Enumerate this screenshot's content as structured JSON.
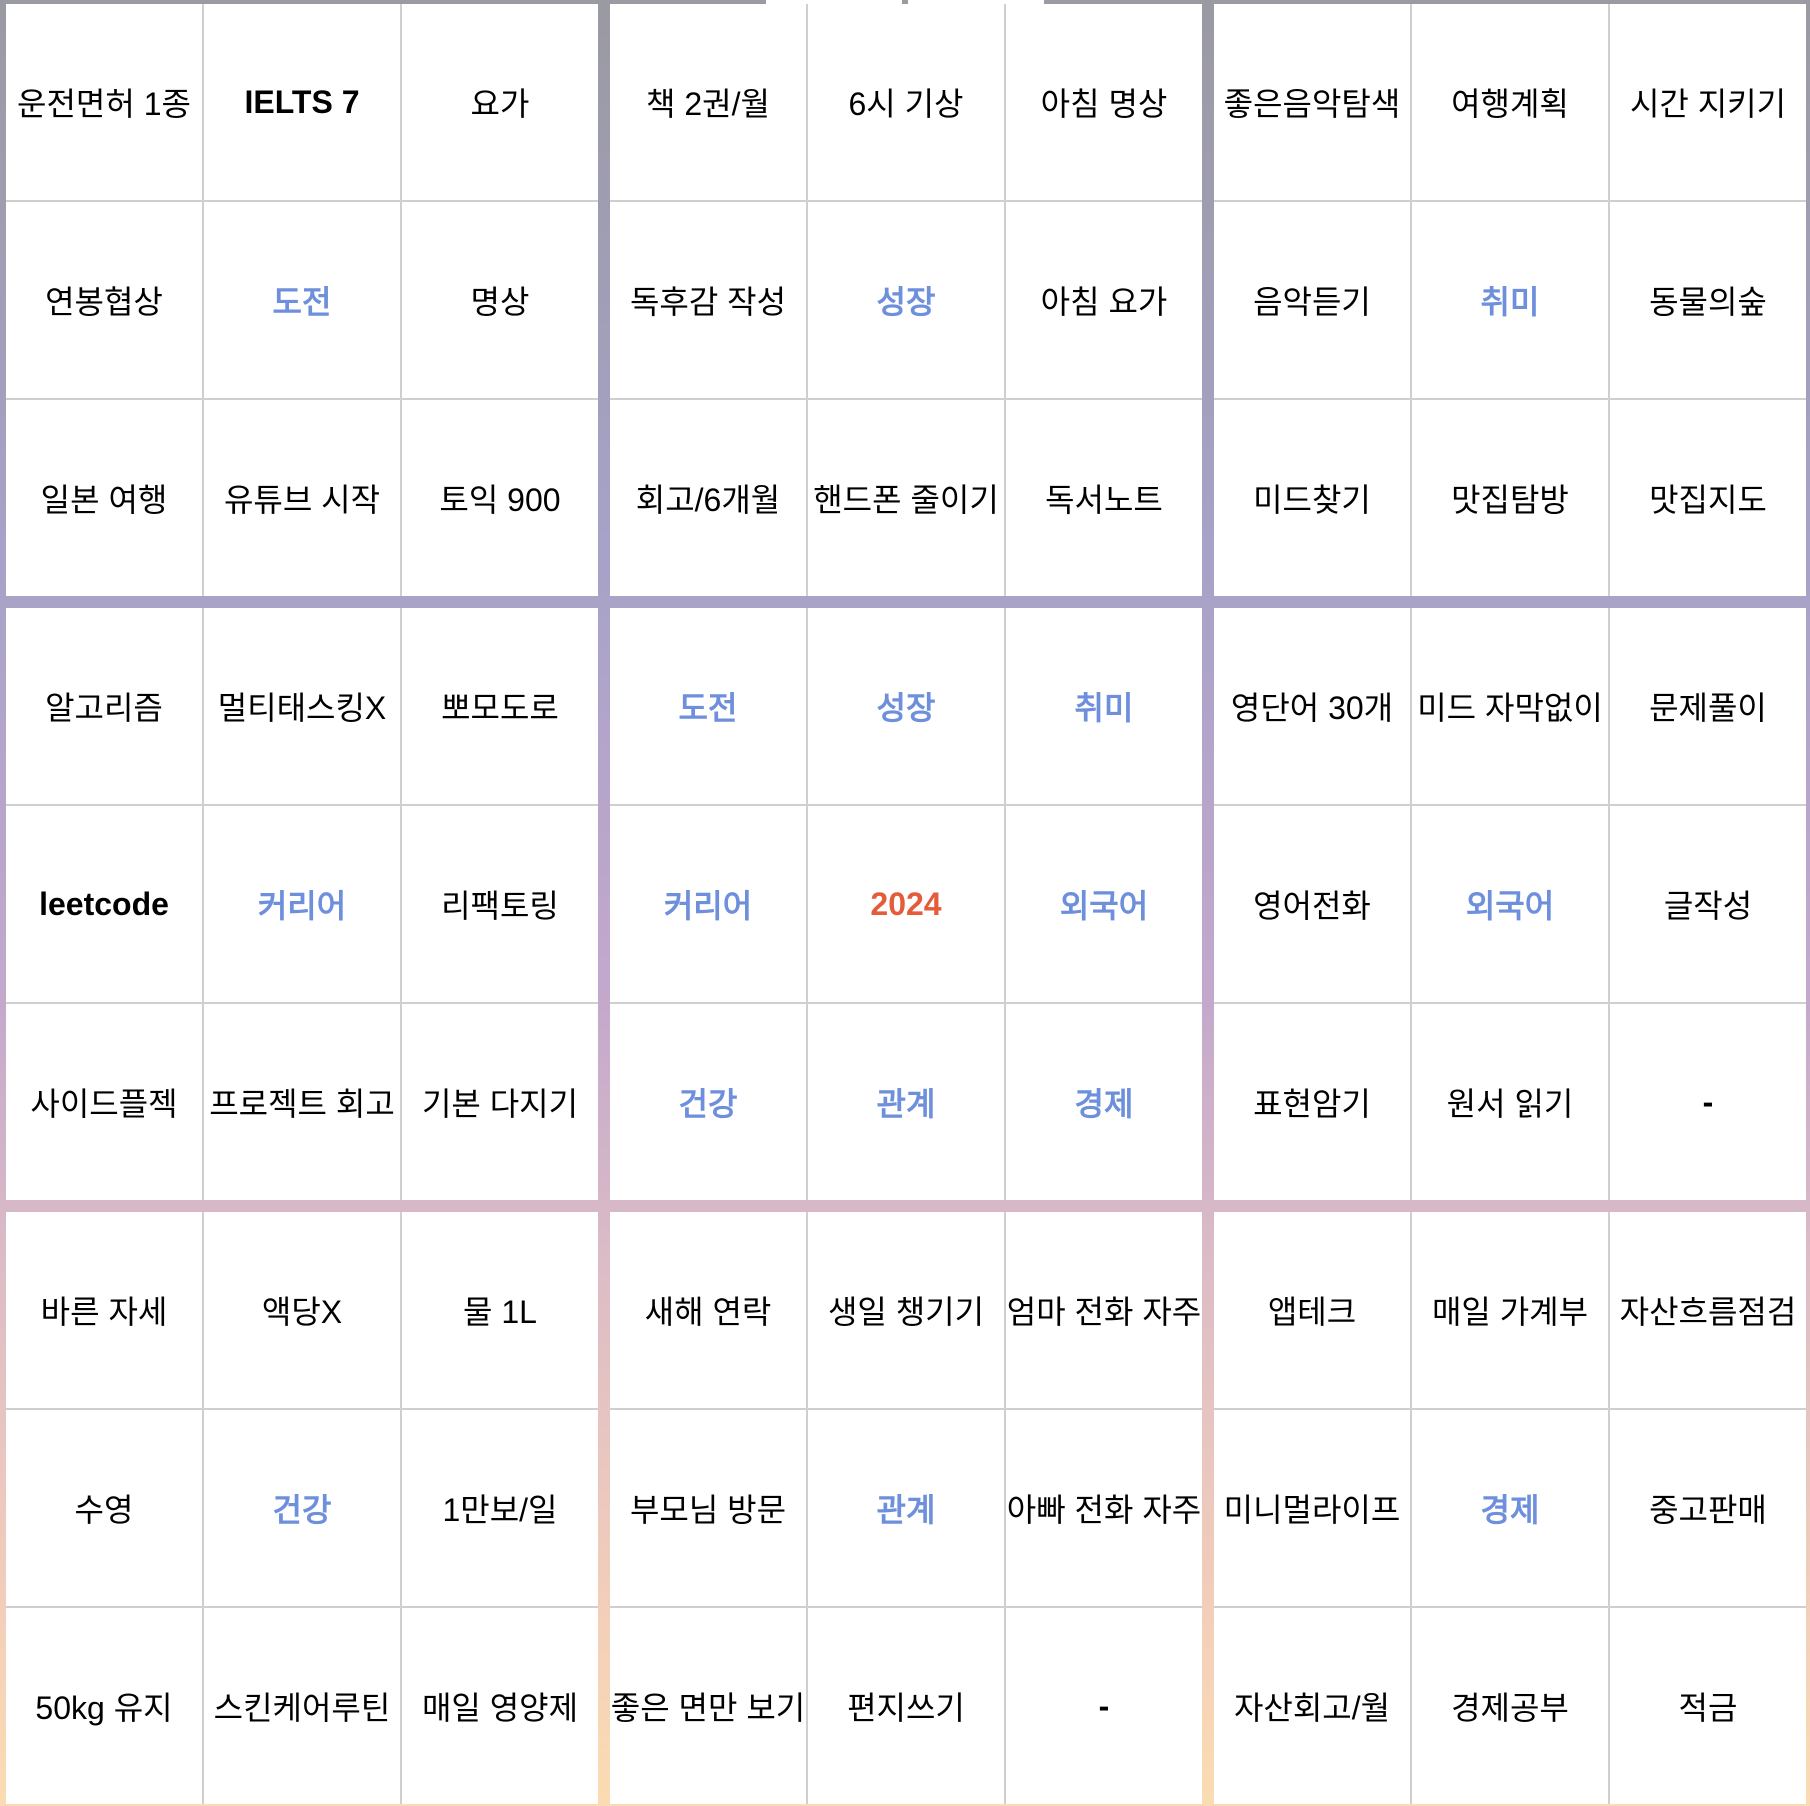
{
  "colors": {
    "category": "#6d8fdc",
    "year": "#e45c3a",
    "text": "#000000",
    "cell_background": "#ffffff"
  },
  "blocks": [
    {
      "cells": [
        {
          "text": "운전면허 1종",
          "style": "normal"
        },
        {
          "text": "IELTS 7",
          "style": "num"
        },
        {
          "text": "요가",
          "style": "normal"
        },
        {
          "text": "연봉협상",
          "style": "normal"
        },
        {
          "text": "도전",
          "style": "cat"
        },
        {
          "text": "명상",
          "style": "normal"
        },
        {
          "text": "일본 여행",
          "style": "normal"
        },
        {
          "text": "유튜브 시작",
          "style": "normal"
        },
        {
          "text": "토익 900",
          "style": "normal"
        }
      ]
    },
    {
      "cells": [
        {
          "text": "책 2권/월",
          "style": "normal"
        },
        {
          "text": "6시 기상",
          "style": "normal"
        },
        {
          "text": "아침 명상",
          "style": "normal"
        },
        {
          "text": "독후감 작성",
          "style": "normal"
        },
        {
          "text": "성장",
          "style": "cat"
        },
        {
          "text": "아침 요가",
          "style": "normal"
        },
        {
          "text": "회고/6개월",
          "style": "normal"
        },
        {
          "text": "핸드폰 줄이기",
          "style": "normal"
        },
        {
          "text": "독서노트",
          "style": "normal"
        }
      ]
    },
    {
      "cells": [
        {
          "text": "좋은음악탐색",
          "style": "normal"
        },
        {
          "text": "여행계획",
          "style": "normal"
        },
        {
          "text": "시간 지키기",
          "style": "normal"
        },
        {
          "text": "음악듣기",
          "style": "normal"
        },
        {
          "text": "취미",
          "style": "cat"
        },
        {
          "text": "동물의숲",
          "style": "normal"
        },
        {
          "text": "미드찾기",
          "style": "normal"
        },
        {
          "text": "맛집탐방",
          "style": "normal"
        },
        {
          "text": "맛집지도",
          "style": "normal"
        }
      ]
    },
    {
      "cells": [
        {
          "text": "알고리즘",
          "style": "normal"
        },
        {
          "text": "멀티태스킹X",
          "style": "normal"
        },
        {
          "text": "뽀모도로",
          "style": "normal"
        },
        {
          "text": "leetcode",
          "style": "num"
        },
        {
          "text": "커리어",
          "style": "cat"
        },
        {
          "text": "리팩토링",
          "style": "normal"
        },
        {
          "text": "사이드플젝",
          "style": "normal"
        },
        {
          "text": "프로젝트 회고",
          "style": "normal"
        },
        {
          "text": "기본 다지기",
          "style": "normal"
        }
      ]
    },
    {
      "cells": [
        {
          "text": "도전",
          "style": "cat"
        },
        {
          "text": "성장",
          "style": "cat"
        },
        {
          "text": "취미",
          "style": "cat"
        },
        {
          "text": "커리어",
          "style": "cat"
        },
        {
          "text": "2024",
          "style": "year"
        },
        {
          "text": "외국어",
          "style": "cat"
        },
        {
          "text": "건강",
          "style": "cat"
        },
        {
          "text": "관계",
          "style": "cat"
        },
        {
          "text": "경제",
          "style": "cat"
        }
      ]
    },
    {
      "cells": [
        {
          "text": "영단어 30개",
          "style": "normal"
        },
        {
          "text": "미드 자막없이",
          "style": "normal"
        },
        {
          "text": "문제풀이",
          "style": "normal"
        },
        {
          "text": "영어전화",
          "style": "normal"
        },
        {
          "text": "외국어",
          "style": "cat"
        },
        {
          "text": "글작성",
          "style": "normal"
        },
        {
          "text": "표현암기",
          "style": "normal"
        },
        {
          "text": "원서 읽기",
          "style": "normal"
        },
        {
          "text": "-",
          "style": "num"
        }
      ]
    },
    {
      "cells": [
        {
          "text": "바른 자세",
          "style": "normal"
        },
        {
          "text": "액당X",
          "style": "normal"
        },
        {
          "text": "물 1L",
          "style": "normal"
        },
        {
          "text": "수영",
          "style": "normal"
        },
        {
          "text": "건강",
          "style": "cat"
        },
        {
          "text": "1만보/일",
          "style": "normal"
        },
        {
          "text": "50kg 유지",
          "style": "normal"
        },
        {
          "text": "스킨케어루틴",
          "style": "normal"
        },
        {
          "text": "매일 영양제",
          "style": "normal"
        }
      ]
    },
    {
      "cells": [
        {
          "text": "새해 연락",
          "style": "normal"
        },
        {
          "text": "생일 챙기기",
          "style": "normal"
        },
        {
          "text": "엄마 전화 자주",
          "style": "normal"
        },
        {
          "text": "부모님 방문",
          "style": "normal"
        },
        {
          "text": "관계",
          "style": "cat"
        },
        {
          "text": "아빠 전화 자주",
          "style": "normal"
        },
        {
          "text": "좋은 면만 보기",
          "style": "normal"
        },
        {
          "text": "편지쓰기",
          "style": "normal"
        },
        {
          "text": "-",
          "style": "num"
        }
      ]
    },
    {
      "cells": [
        {
          "text": "앱테크",
          "style": "normal"
        },
        {
          "text": "매일 가계부",
          "style": "normal"
        },
        {
          "text": "자산흐름점검",
          "style": "normal"
        },
        {
          "text": "미니멀라이프",
          "style": "normal"
        },
        {
          "text": "경제",
          "style": "cat"
        },
        {
          "text": "중고판매",
          "style": "normal"
        },
        {
          "text": "자산회고/월",
          "style": "normal"
        },
        {
          "text": "경제공부",
          "style": "normal"
        },
        {
          "text": "적금",
          "style": "normal"
        }
      ]
    }
  ]
}
